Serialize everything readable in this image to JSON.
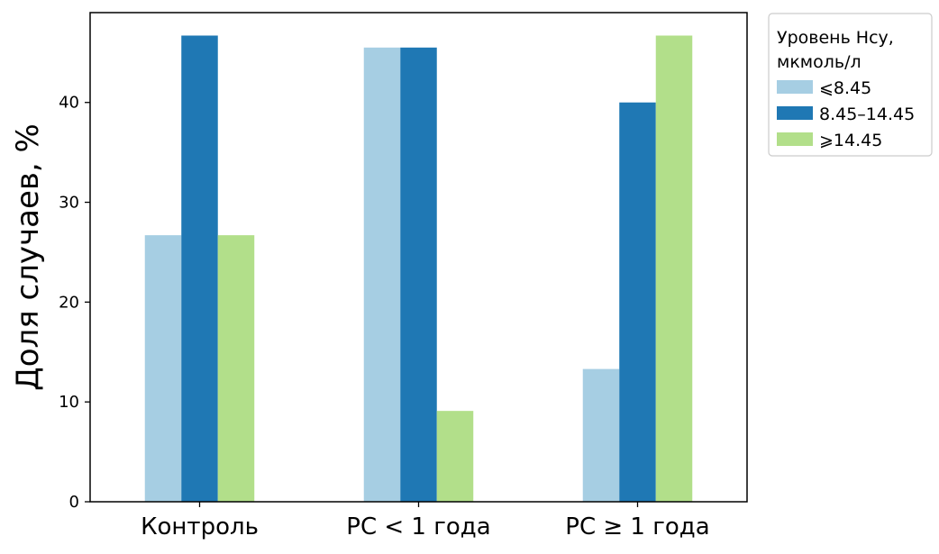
{
  "chart_data": {
    "type": "bar",
    "categories": [
      "Контроль",
      "РС < 1 года",
      "РС ≥ 1 года"
    ],
    "series": [
      {
        "name": "⩽8.45",
        "color": "#a6cee3",
        "values": [
          26.7,
          45.5,
          13.3
        ]
      },
      {
        "name": "8.45–14.45",
        "color": "#1f78b4",
        "values": [
          46.7,
          45.5,
          40.0
        ]
      },
      {
        "name": "⩾14.45",
        "color": "#b2df8a",
        "values": [
          26.7,
          9.1,
          46.7
        ]
      }
    ],
    "ylabel": "Доля случаев, %",
    "xlabel": "",
    "ylim": [
      0,
      49
    ],
    "yticks": [
      0,
      10,
      20,
      30,
      40
    ],
    "legend": {
      "title_lines": [
        "Уровень Hcy,",
        "мкмоль/л"
      ],
      "placement": "outside-top-right"
    },
    "grid": false
  }
}
